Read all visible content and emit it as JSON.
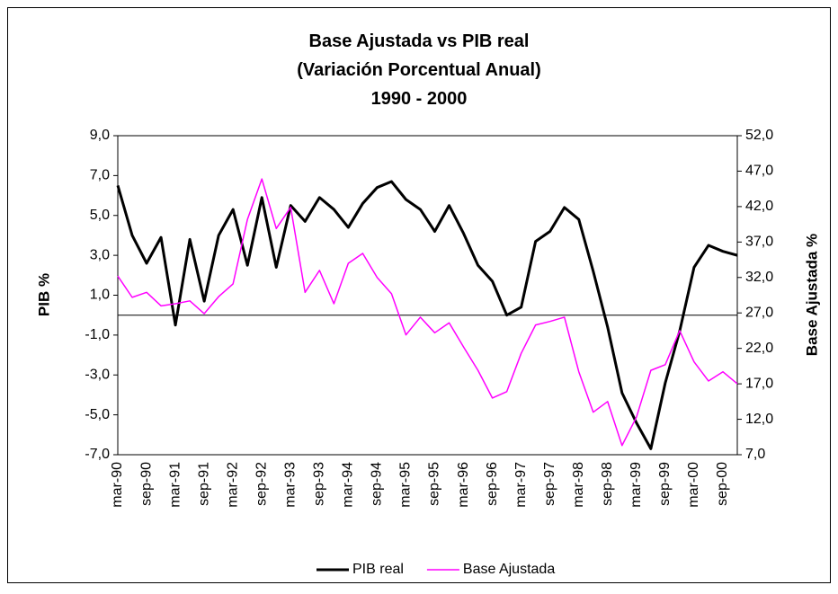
{
  "chart_data": {
    "type": "line",
    "title": [
      "Base Ajustada vs PIB real",
      "(Variación Porcentual Anual)",
      "1990 - 2000"
    ],
    "y_label": "PIB %",
    "y2_label": "Base Ajustada %",
    "categories": [
      "mar-90",
      null,
      "sep-90",
      null,
      "mar-91",
      null,
      "sep-91",
      null,
      "mar-92",
      null,
      "sep-92",
      null,
      "mar-93",
      null,
      "sep-93",
      null,
      "mar-94",
      null,
      "sep-94",
      null,
      "mar-95",
      null,
      "sep-95",
      null,
      "mar-96",
      null,
      "sep-96",
      null,
      "mar-97",
      null,
      "sep-97",
      null,
      "mar-98",
      null,
      "sep-98",
      null,
      "mar-99",
      null,
      "sep-99",
      null,
      "mar-00",
      null,
      "sep-00",
      null
    ],
    "series": [
      {
        "name": "PIB real",
        "color": "#000000",
        "values": [
          6.5,
          4.0,
          2.6,
          3.9,
          -0.5,
          3.8,
          0.7,
          4.0,
          5.3,
          2.5,
          5.9,
          2.4,
          5.5,
          4.7,
          5.9,
          5.3,
          4.4,
          5.6,
          6.4,
          6.7,
          5.8,
          5.3,
          4.2,
          5.5,
          4.1,
          2.5,
          1.7,
          0.0,
          0.4,
          3.7,
          4.2,
          5.4,
          4.8,
          2.2,
          -0.6,
          -3.9,
          -5.4,
          -6.7,
          -3.4,
          -0.8,
          2.4,
          3.5,
          3.2,
          3.0
        ]
      },
      {
        "name": "Base Ajustada",
        "color": "#ff00ff",
        "axis": "y2",
        "values": [
          32.2,
          29.2,
          29.9,
          28.0,
          28.3,
          28.7,
          26.9,
          29.3,
          31.1,
          40.2,
          45.9,
          38.9,
          41.9,
          29.9,
          33.0,
          28.3,
          34.0,
          35.4,
          32.0,
          29.7,
          23.9,
          26.4,
          24.2,
          25.6,
          22.2,
          18.9,
          15.0,
          15.9,
          21.3,
          25.3,
          25.8,
          26.4,
          18.7,
          13.0,
          14.5,
          8.3,
          12.3,
          18.9,
          19.7,
          24.5,
          20.1,
          17.4,
          18.7,
          17.0
        ]
      }
    ],
    "ylim": [
      -7,
      9
    ],
    "yticks": [
      {
        "value": -7,
        "label": "-7,0"
      },
      {
        "value": -5,
        "label": "-5,0"
      },
      {
        "value": -3,
        "label": "-3,0"
      },
      {
        "value": -1,
        "label": "-1,0"
      },
      {
        "value": 1,
        "label": "1,0"
      },
      {
        "value": 3,
        "label": "3,0"
      },
      {
        "value": 5,
        "label": "5,0"
      },
      {
        "value": 7,
        "label": "7,0"
      },
      {
        "value": 9,
        "label": "9,0"
      }
    ],
    "y2lim": [
      7,
      52
    ],
    "y2ticks": [
      {
        "value": 7,
        "label": "7,0"
      },
      {
        "value": 12,
        "label": "12,0"
      },
      {
        "value": 17,
        "label": "17,0"
      },
      {
        "value": 22,
        "label": "22,0"
      },
      {
        "value": 27,
        "label": "27,0"
      },
      {
        "value": 32,
        "label": "32,0"
      },
      {
        "value": 37,
        "label": "37,0"
      },
      {
        "value": 42,
        "label": "42,0"
      },
      {
        "value": 47,
        "label": "47,0"
      },
      {
        "value": 52,
        "label": "52,0"
      }
    ],
    "legend": "bottom"
  }
}
